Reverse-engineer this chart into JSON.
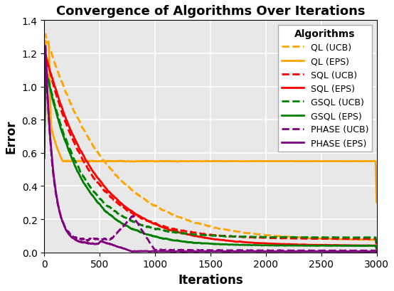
{
  "title": "Convergence of Algorithms Over Iterations",
  "xlabel": "Iterations",
  "ylabel": "Error",
  "xlim": [
    0,
    3000
  ],
  "ylim": [
    0,
    1.4
  ],
  "yticks": [
    0.0,
    0.2,
    0.4,
    0.6,
    0.8,
    1.0,
    1.2,
    1.4
  ],
  "xticks": [
    0,
    500,
    1000,
    1500,
    2000,
    2500,
    3000
  ],
  "legend_title": "Algorithms",
  "background_color": "#e8e8e8",
  "grid_color": "white",
  "title_fontsize": 13,
  "label_fontsize": 12,
  "tick_fontsize": 10,
  "legend_fontsize": 9,
  "algorithms": [
    {
      "label": "QL (UCB)",
      "color": "#FFA500",
      "linestyle": "dashed",
      "lw": 2.0
    },
    {
      "label": "QL (EPS)",
      "color": "#FFA500",
      "linestyle": "solid",
      "lw": 2.0
    },
    {
      "label": "SQL (UCB)",
      "color": "#FF0000",
      "linestyle": "dashed",
      "lw": 2.0
    },
    {
      "label": "SQL (EPS)",
      "color": "#FF0000",
      "linestyle": "solid",
      "lw": 2.0
    },
    {
      "label": "GSQL (UCB)",
      "color": "#008000",
      "linestyle": "dashed",
      "lw": 2.0
    },
    {
      "label": "GSQL (EPS)",
      "color": "#008000",
      "linestyle": "solid",
      "lw": 2.0
    },
    {
      "label": "PHASE (UCB)",
      "color": "#800080",
      "linestyle": "dashed",
      "lw": 2.0
    },
    {
      "label": "PHASE (EPS)",
      "color": "#800080",
      "linestyle": "solid",
      "lw": 2.0
    }
  ]
}
